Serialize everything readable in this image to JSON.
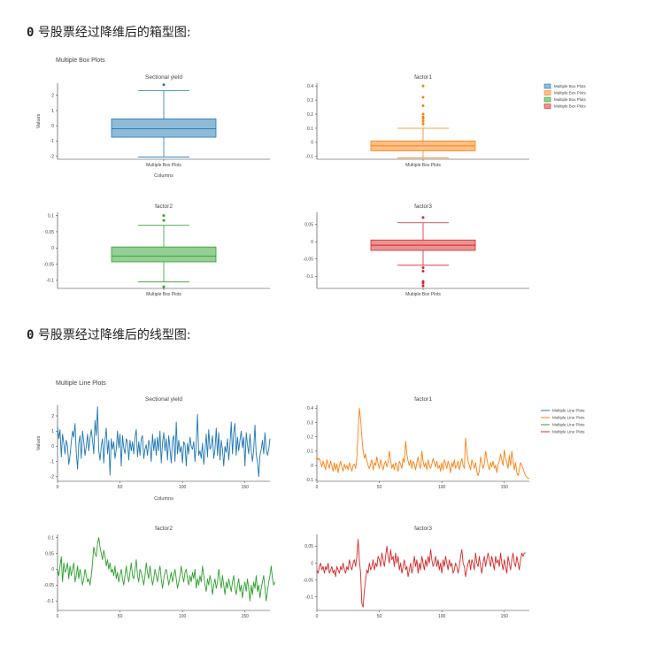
{
  "headings": {
    "box": "0号股票经过降维后的箱型图:",
    "line": "0号股票经过降维后的线型图:"
  },
  "box_figure": {
    "title": "Multiple Box Plots",
    "xlabel": "Columns",
    "ylabel": "Values",
    "legend": {
      "placement": "top-right",
      "entries": [
        "Multiple Box Plots",
        "Multiple Box Plots",
        "Multiple Box Plots",
        "Multiple Box Plots"
      ]
    }
  },
  "line_figure": {
    "title": "Multiple Line Plots",
    "xlabel": "Columns",
    "ylabel": "Values",
    "legend": {
      "placement": "top-right",
      "entries": [
        "Multiple Line Plots",
        "Multiple Line Plots",
        "Multiple Line Plots",
        "Multiple Line Plots"
      ]
    }
  },
  "colors": {
    "sectional_yield": "#1f77b4",
    "factor1": "#ff7f0e",
    "factor2": "#2ca02c",
    "factor3": "#d62728"
  },
  "chart_data": [
    {
      "type": "box",
      "title": "Multiple Box Plots",
      "xlabel": "Columns",
      "ylabel": "Values",
      "panels": [
        {
          "name": "Sectional yield",
          "category": "Multiple Box Plots",
          "ylim": [
            -2.2,
            2.8
          ],
          "yticks": [
            -2,
            -1,
            0,
            1,
            2
          ],
          "tick_labels": [
            "-2",
            "-1",
            "0",
            "1",
            "2"
          ],
          "min": -2.05,
          "q1": -0.75,
          "median": -0.2,
          "q3": 0.45,
          "max": 2.3,
          "outliers": [
            2.7
          ]
        },
        {
          "name": "factor1",
          "category": "Multiple Box Plots",
          "ylim": [
            -0.12,
            0.42
          ],
          "yticks": [
            -0.1,
            0,
            0.1,
            0.2,
            0.3,
            0.4
          ],
          "tick_labels": [
            "-0.1",
            "0",
            "0.1",
            "0.2",
            "0.3",
            "0.4"
          ],
          "min": -0.11,
          "q1": -0.06,
          "median": -0.025,
          "q3": 0.01,
          "max": 0.1,
          "outliers": [
            0.4,
            0.32,
            0.26,
            0.2,
            0.18,
            0.17,
            0.15,
            0.13
          ]
        },
        {
          "name": "factor2",
          "category": "Multiple Box Plots",
          "ylim": [
            -0.125,
            0.11
          ],
          "yticks": [
            -0.1,
            -0.05,
            0,
            0.05,
            0.1
          ],
          "tick_labels": [
            "-0.1",
            "-0.05",
            "0",
            "0.05",
            "0.1"
          ],
          "min": -0.105,
          "q1": -0.043,
          "median": -0.025,
          "q3": 0.003,
          "max": 0.07,
          "outliers": [
            0.1,
            0.085,
            -0.12
          ]
        },
        {
          "name": "factor3",
          "category": "Multiple Box Plots",
          "ylim": [
            -0.135,
            0.085
          ],
          "yticks": [
            -0.1,
            -0.05,
            0,
            0.05
          ],
          "tick_labels": [
            "-0.1",
            "-0.05",
            "0",
            "0.05"
          ],
          "min": -0.068,
          "q1": -0.025,
          "median": -0.01,
          "q3": 0.005,
          "max": 0.055,
          "outliers": [
            0.07,
            -0.075,
            -0.085,
            -0.115,
            -0.12,
            -0.128
          ]
        }
      ]
    },
    {
      "type": "line",
      "title": "Multiple Line Plots",
      "xlabel": "Columns",
      "ylabel": "Values",
      "xlim": [
        0,
        170
      ],
      "xticks": [
        0,
        50,
        100,
        150
      ],
      "panels": [
        {
          "name": "Sectional yield",
          "ylim": [
            -2.3,
            2.7
          ],
          "yticks": [
            -2,
            -1,
            0,
            1,
            2
          ],
          "tick_labels": [
            "-2",
            "-1",
            "0",
            "1",
            "2"
          ],
          "values": [
            1.3,
            0.5,
            1.1,
            -0.7,
            0.8,
            0.2,
            -0.5,
            0.4,
            0.0,
            -1.2,
            -0.6,
            0.3,
            1.0,
            0.6,
            1.5,
            -0.4,
            -1.5,
            0.2,
            0.7,
            -0.8,
            1.0,
            0.3,
            -0.6,
            0.0,
            0.8,
            -0.3,
            0.5,
            1.1,
            0.4,
            -0.5,
            1.7,
            0.7,
            2.6,
            -0.3,
            -0.9,
            0.0,
            0.5,
            -1.1,
            0.4,
            1.2,
            -0.5,
            0.4,
            -1.9,
            0.5,
            -0.2,
            0.3,
            -0.8,
            -0.2,
            1.0,
            -0.1,
            0.8,
            -1.3,
            0.7,
            -0.1,
            -0.5,
            0.5,
            0.3,
            -0.9,
            0.4,
            -0.3,
            0.3,
            -0.5,
            0.6,
            1.1,
            -0.7,
            0.3,
            -0.6,
            0.5,
            0.7,
            -0.8,
            -0.2,
            0.1,
            -0.6,
            0.4,
            0.0,
            -1.0,
            0.8,
            -0.3,
            0.5,
            -0.6,
            0.6,
            -0.3,
            1.0,
            -1.1,
            0.2,
            0.9,
            -0.3,
            0.5,
            -0.9,
            0.7,
            -0.2,
            -1.1,
            0.4,
            0.7,
            -1.0,
            1.6,
            -0.5,
            0.4,
            -0.4,
            0.0,
            -1.1,
            0.3,
            0.1,
            -1.3,
            0.2,
            -0.5,
            0.6,
            0.0,
            -0.2,
            0.3,
            -1.0,
            0.2,
            2.1,
            -0.6,
            -0.3,
            -0.8,
            0.2,
            -1.2,
            -0.3,
            0.8,
            -0.7,
            1.1,
            -0.2,
            0.0,
            0.7,
            -0.8,
            -0.2,
            1.2,
            -0.6,
            0.9,
            -0.9,
            0.4,
            -0.2,
            -1.3,
            0.0,
            -0.4,
            0.5,
            -0.9,
            0.1,
            1.6,
            -0.5,
            0.9,
            1.5,
            -0.6,
            0.6,
            -0.3,
            0.4,
            1.0,
            -0.1,
            0.6,
            -1.3,
            0.9,
            0.1,
            -0.5,
            0.8,
            -0.3,
            -1.0,
            -0.2,
            1.4,
            -0.6,
            -1.0,
            -2.0,
            -0.6,
            -0.2,
            0.4,
            -0.5,
            0.9,
            -0.2,
            -0.6,
            -0.2,
            0.5
          ]
        },
        {
          "name": "factor1",
          "ylim": [
            -0.11,
            0.42
          ],
          "yticks": [
            -0.1,
            0,
            0.1,
            0.2,
            0.3,
            0.4
          ],
          "tick_labels": [
            "-0.1",
            "0",
            "0.1",
            "0.2",
            "0.3",
            "0.4"
          ],
          "values": [
            0.06,
            0.04,
            0.05,
            0.02,
            -0.01,
            0.03,
            0.0,
            -0.03,
            0.04,
            0.01,
            -0.02,
            0.03,
            0.0,
            -0.04,
            0.02,
            -0.03,
            0.01,
            -0.05,
            0.0,
            0.03,
            -0.01,
            -0.04,
            0.01,
            -0.02,
            0.0,
            -0.03,
            0.02,
            -0.01,
            -0.04,
            0.0,
            0.01,
            -0.02,
            0.05,
            0.24,
            0.4,
            0.32,
            0.2,
            0.1,
            0.05,
            0.08,
            0.03,
            0.0,
            -0.02,
            0.01,
            0.04,
            -0.03,
            0.02,
            0.0,
            0.06,
            0.01,
            -0.02,
            0.04,
            0.0,
            -0.03,
            0.01,
            0.03,
            -0.01,
            0.02,
            0.1,
            0.04,
            -0.02,
            0.01,
            -0.03,
            0.02,
            0.0,
            -0.04,
            0.03,
            0.01,
            -0.02,
            0.05,
            0.02,
            0.17,
            0.08,
            0.03,
            0.0,
            0.04,
            -0.02,
            0.03,
            0.01,
            -0.03,
            0.02,
            0.06,
            0.0,
            -0.02,
            0.1,
            0.03,
            -0.01,
            0.02,
            -0.03,
            0.04,
            0.0,
            -0.02,
            0.01,
            0.05,
            0.02,
            -0.01,
            0.03,
            -0.02,
            0.0,
            -0.04,
            0.02,
            -0.03,
            0.04,
            0.01,
            -0.02,
            0.03,
            0.0,
            -0.05,
            0.02,
            -0.01,
            0.04,
            -0.02,
            0.0,
            0.03,
            -0.03,
            0.01,
            0.05,
            0.0,
            -0.02,
            0.19,
            0.1,
            0.03,
            0.0,
            -0.03,
            0.04,
            0.01,
            -0.02,
            0.02,
            -0.04,
            -0.07,
            -0.04,
            0.06,
            0.02,
            -0.02,
            0.01,
            0.1,
            0.05,
            0.0,
            -0.03,
            0.02,
            -0.01,
            0.03,
            -0.02,
            0.0,
            -0.05,
            0.01,
            0.03,
            0.08,
            0.04,
            0.0,
            0.11,
            0.05,
            0.02,
            -0.02,
            0.07,
            0.0,
            0.1,
            0.03,
            -0.03,
            0.02,
            -0.05,
            -0.07,
            -0.03,
            0.02,
            0.0,
            -0.02,
            -0.05,
            -0.07,
            -0.08,
            -0.09,
            -0.09
          ]
        },
        {
          "name": "factor2",
          "ylim": [
            -0.13,
            0.11
          ],
          "yticks": [
            -0.1,
            -0.05,
            0,
            0.05,
            0.1
          ],
          "tick_labels": [
            "-0.1",
            "-0.05",
            "0",
            "0.05",
            "0.1"
          ],
          "values": [
            0.0,
            -0.02,
            0.01,
            0.04,
            -0.04,
            0.02,
            -0.01,
            0.0,
            0.02,
            -0.03,
            0.01,
            -0.02,
            0.0,
            0.02,
            -0.04,
            -0.02,
            0.01,
            -0.03,
            0.0,
            -0.02,
            -0.05,
            -0.03,
            0.0,
            -0.02,
            -0.04,
            -0.03,
            -0.05,
            -0.02,
            0.02,
            0.07,
            0.05,
            0.04,
            0.08,
            0.1,
            0.07,
            0.05,
            0.03,
            0.06,
            0.04,
            0.01,
            0.03,
            0.0,
            0.02,
            -0.01,
            0.0,
            -0.02,
            0.01,
            -0.03,
            -0.01,
            -0.04,
            -0.02,
            0.0,
            -0.03,
            -0.05,
            -0.02,
            0.01,
            -0.02,
            -0.04,
            -0.01,
            0.02,
            -0.02,
            -0.03,
            0.0,
            0.03,
            -0.02,
            -0.04,
            0.0,
            -0.01,
            -0.03,
            -0.05,
            -0.02,
            0.02,
            -0.01,
            -0.03,
            0.01,
            -0.02,
            -0.05,
            -0.03,
            0.0,
            -0.02,
            -0.04,
            -0.01,
            0.01,
            -0.03,
            -0.06,
            -0.03,
            -0.01,
            0.0,
            -0.02,
            -0.05,
            -0.03,
            -0.01,
            -0.04,
            -0.02,
            0.0,
            -0.03,
            -0.06,
            -0.04,
            -0.02,
            0.01,
            -0.02,
            -0.04,
            -0.01,
            0.0,
            -0.03,
            -0.05,
            -0.02,
            -0.04,
            -0.01,
            -0.03,
            0.0,
            -0.06,
            -0.03,
            -0.05,
            -0.02,
            -0.04,
            0.01,
            -0.02,
            -0.05,
            -0.07,
            -0.03,
            -0.05,
            -0.02,
            -0.04,
            -0.08,
            -0.05,
            -0.03,
            -0.06,
            -0.04,
            0.0,
            -0.03,
            -0.06,
            -0.02,
            -0.05,
            -0.08,
            -0.04,
            -0.06,
            -0.03,
            -0.05,
            -0.07,
            -0.04,
            -0.02,
            -0.06,
            -0.08,
            -0.05,
            -0.03,
            -0.07,
            -0.05,
            -0.09,
            -0.06,
            -0.04,
            -0.07,
            -0.03,
            -0.06,
            -0.1,
            -0.05,
            -0.08,
            -0.04,
            -0.06,
            -0.02,
            -0.07,
            -0.05,
            -0.09,
            -0.06,
            -0.04,
            -0.02,
            -0.06,
            -0.1,
            -0.07,
            -0.04,
            -0.02,
            0.01,
            -0.03,
            -0.05,
            -0.04
          ]
        },
        {
          "name": "factor3",
          "ylim": [
            -0.14,
            0.085
          ],
          "yticks": [
            -0.1,
            -0.05,
            0,
            0.05
          ],
          "tick_labels": [
            "-0.1",
            "-0.05",
            "0",
            "0.05"
          ],
          "values": [
            -0.02,
            -0.03,
            -0.01,
            0.0,
            -0.02,
            -0.01,
            -0.03,
            -0.01,
            -0.02,
            0.0,
            -0.03,
            -0.02,
            -0.01,
            -0.03,
            -0.02,
            -0.04,
            -0.01,
            -0.02,
            -0.03,
            -0.01,
            -0.02,
            0.0,
            -0.02,
            -0.03,
            -0.01,
            -0.02,
            0.01,
            -0.01,
            -0.02,
            0.0,
            0.01,
            -0.01,
            0.02,
            0.07,
            0.01,
            -0.03,
            -0.12,
            -0.13,
            -0.08,
            -0.05,
            -0.02,
            -0.03,
            0.0,
            -0.02,
            -0.01,
            0.01,
            -0.02,
            0.0,
            -0.01,
            0.02,
            0.01,
            -0.01,
            0.03,
            0.01,
            -0.01,
            0.02,
            0.05,
            0.02,
            0.0,
            0.04,
            0.01,
            0.02,
            -0.01,
            0.03,
            0.0,
            0.02,
            -0.02,
            0.0,
            -0.03,
            -0.01,
            0.01,
            -0.02,
            -0.01,
            -0.04,
            -0.02,
            0.0,
            -0.03,
            -0.01,
            0.02,
            -0.01,
            0.01,
            -0.03,
            0.0,
            -0.02,
            0.02,
            0.0,
            -0.02,
            0.01,
            -0.01,
            0.02,
            0.0,
            0.04,
            0.01,
            -0.01,
            0.0,
            0.02,
            -0.01,
            0.01,
            -0.02,
            0.0,
            -0.03,
            0.01,
            -0.01,
            0.02,
            0.0,
            -0.02,
            0.01,
            -0.01,
            0.0,
            -0.03,
            -0.02,
            0.0,
            -0.01,
            -0.03,
            -0.01,
            0.02,
            0.04,
            0.0,
            -0.01,
            -0.04,
            -0.02,
            0.0,
            0.01,
            -0.02,
            0.01,
            0.0,
            -0.02,
            0.03,
            0.0,
            -0.01,
            0.02,
            -0.01,
            -0.03,
            0.0,
            0.02,
            -0.01,
            0.01,
            0.03,
            0.01,
            -0.01,
            0.02,
            0.0,
            -0.02,
            0.02,
            0.0,
            0.01,
            -0.01,
            0.03,
            0.0,
            -0.02,
            0.01,
            -0.01,
            -0.03,
            0.02,
            0.0,
            -0.02,
            0.01,
            0.03,
            0.0,
            -0.01,
            0.02,
            0.0,
            -0.02,
            0.01,
            0.03,
            0.02,
            0.03,
            0.03
          ]
        }
      ]
    }
  ]
}
